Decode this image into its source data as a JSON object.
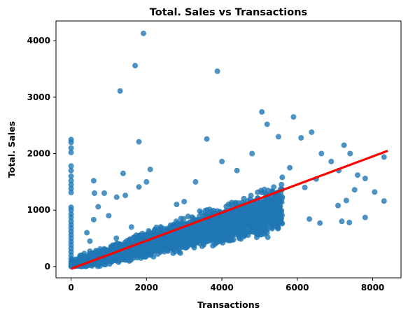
{
  "chart_data": {
    "type": "scatter",
    "title": "Total. Sales vs Transactions",
    "xlabel": "Transactions",
    "ylabel": "Total. Sales",
    "xlim": [
      -400,
      8750
    ],
    "ylim": [
      -200,
      4350
    ],
    "xticks": [
      0,
      2000,
      4000,
      6000,
      8000
    ],
    "yticks": [
      0,
      1000,
      2000,
      3000,
      4000
    ],
    "grid": false,
    "point_color": "#1f77b4",
    "line_color": "#ff0000",
    "regression_line": {
      "x": [
        0,
        8400
      ],
      "y": [
        -40,
        2050
      ]
    },
    "series": [
      {
        "points": [
          [
            0,
            2250
          ],
          [
            0,
            2200
          ],
          [
            0,
            2100
          ],
          [
            0,
            2020
          ],
          [
            0,
            1780
          ],
          [
            0,
            1700
          ],
          [
            0,
            1600
          ],
          [
            0,
            1520
          ],
          [
            0,
            1450
          ],
          [
            0,
            1380
          ],
          [
            0,
            1310
          ],
          [
            0,
            1050
          ],
          [
            0,
            1000
          ],
          [
            0,
            930
          ],
          [
            0,
            870
          ],
          [
            0,
            800
          ],
          [
            0,
            740
          ],
          [
            0,
            680
          ],
          [
            0,
            620
          ],
          [
            0,
            560
          ],
          [
            0,
            500
          ],
          [
            0,
            440
          ],
          [
            0,
            380
          ],
          [
            0,
            320
          ],
          [
            0,
            260
          ],
          [
            0,
            200
          ],
          [
            0,
            140
          ],
          [
            0,
            80
          ],
          [
            0,
            30
          ],
          [
            0,
            0
          ],
          [
            1920,
            4130
          ],
          [
            1700,
            3560
          ],
          [
            1300,
            3110
          ],
          [
            3880,
            3460
          ],
          [
            1800,
            2210
          ],
          [
            3600,
            2260
          ],
          [
            5060,
            2740
          ],
          [
            5200,
            2520
          ],
          [
            5500,
            2300
          ],
          [
            5900,
            2650
          ],
          [
            6100,
            2280
          ],
          [
            6380,
            2380
          ],
          [
            7240,
            2150
          ],
          [
            7400,
            2000
          ],
          [
            6640,
            2000
          ],
          [
            6900,
            1860
          ],
          [
            7100,
            1700
          ],
          [
            7600,
            1620
          ],
          [
            7800,
            1560
          ],
          [
            8300,
            1940
          ],
          [
            8050,
            1320
          ],
          [
            7520,
            1360
          ],
          [
            7300,
            1170
          ],
          [
            7080,
            1080
          ],
          [
            8300,
            1160
          ],
          [
            7800,
            870
          ],
          [
            7380,
            780
          ],
          [
            7180,
            800
          ],
          [
            6600,
            770
          ],
          [
            6320,
            840
          ],
          [
            5600,
            760
          ],
          [
            4000,
            1860
          ],
          [
            4400,
            1700
          ],
          [
            3000,
            1150
          ],
          [
            1380,
            1650
          ],
          [
            1800,
            1410
          ],
          [
            880,
            1300
          ],
          [
            720,
            1060
          ],
          [
            620,
            1300
          ],
          [
            1210,
            1230
          ],
          [
            1440,
            1260
          ],
          [
            2100,
            1720
          ],
          [
            2000,
            1500
          ],
          [
            600,
            1520
          ],
          [
            350,
            230
          ],
          [
            500,
            450
          ],
          [
            420,
            600
          ],
          [
            600,
            830
          ],
          [
            1000,
            900
          ],
          [
            1200,
            500
          ],
          [
            2500,
            640
          ],
          [
            3100,
            700
          ],
          [
            3900,
            480
          ],
          [
            3950,
            560
          ],
          [
            4600,
            830
          ],
          [
            5000,
            1060
          ],
          [
            5600,
            1580
          ],
          [
            6200,
            1400
          ],
          [
            6500,
            1550
          ],
          [
            5800,
            1750
          ],
          [
            4800,
            2000
          ],
          [
            3300,
            1500
          ],
          [
            2800,
            1100
          ],
          [
            1600,
            700
          ],
          [
            900,
            300
          ],
          [
            200,
            80
          ]
        ]
      }
    ]
  }
}
